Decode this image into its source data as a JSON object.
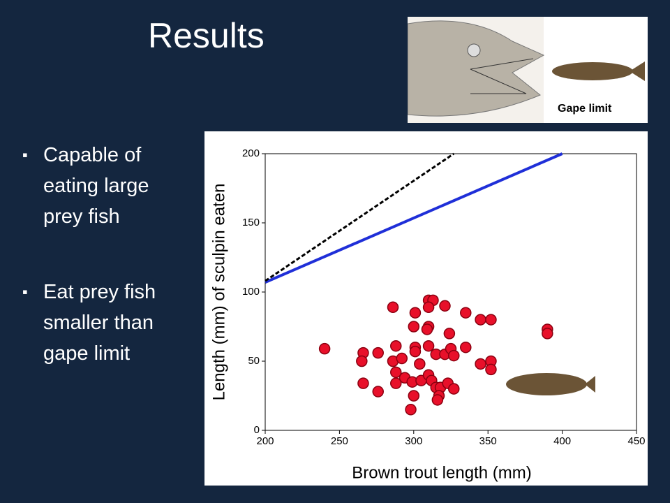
{
  "slide": {
    "title": "Results",
    "bullets": [
      "Capable of eating large prey fish",
      "Eat prey fish smaller than gape limit"
    ],
    "image_caption": "Gape limit"
  },
  "chart_data": {
    "type": "scatter",
    "xlabel": "Brown trout length (mm)",
    "ylabel": "Length (mm) of sculpin eaten",
    "xlim": [
      200,
      450
    ],
    "xticks": [
      200,
      250,
      300,
      350,
      400,
      450
    ],
    "ylim": [
      0,
      200
    ],
    "yticks": [
      0,
      50,
      100,
      150,
      200
    ],
    "color": "#e8102a",
    "x": [
      240,
      286,
      301,
      310,
      313,
      310,
      321,
      335,
      345,
      352,
      390,
      390,
      300,
      310,
      309,
      324,
      266,
      265,
      276,
      288,
      301,
      301,
      310,
      315,
      321,
      325,
      327,
      335,
      345,
      352,
      352,
      286,
      292,
      288,
      304,
      294,
      288,
      266,
      276,
      299,
      305,
      310,
      312,
      315,
      318,
      323,
      327,
      300,
      317,
      316,
      298
    ],
    "values": [
      59,
      89,
      85,
      94,
      94,
      89,
      90,
      85,
      80,
      80,
      73,
      70,
      75,
      75,
      73,
      70,
      56,
      50,
      56,
      61,
      60,
      57,
      61,
      55,
      55,
      59,
      54,
      60,
      48,
      50,
      44,
      50,
      52,
      42,
      48,
      38,
      34,
      34,
      28,
      35,
      36,
      40,
      36,
      31,
      31,
      34,
      30,
      25,
      25,
      22,
      15
    ],
    "lines": [
      {
        "x": [
          200,
          400
        ],
        "values": [
          107,
          200
        ],
        "color": "#1f2fd8",
        "dashed": false
      },
      {
        "x": [
          200,
          327
        ],
        "values": [
          108,
          200
        ],
        "color": "#000000",
        "dashed": true
      }
    ]
  }
}
